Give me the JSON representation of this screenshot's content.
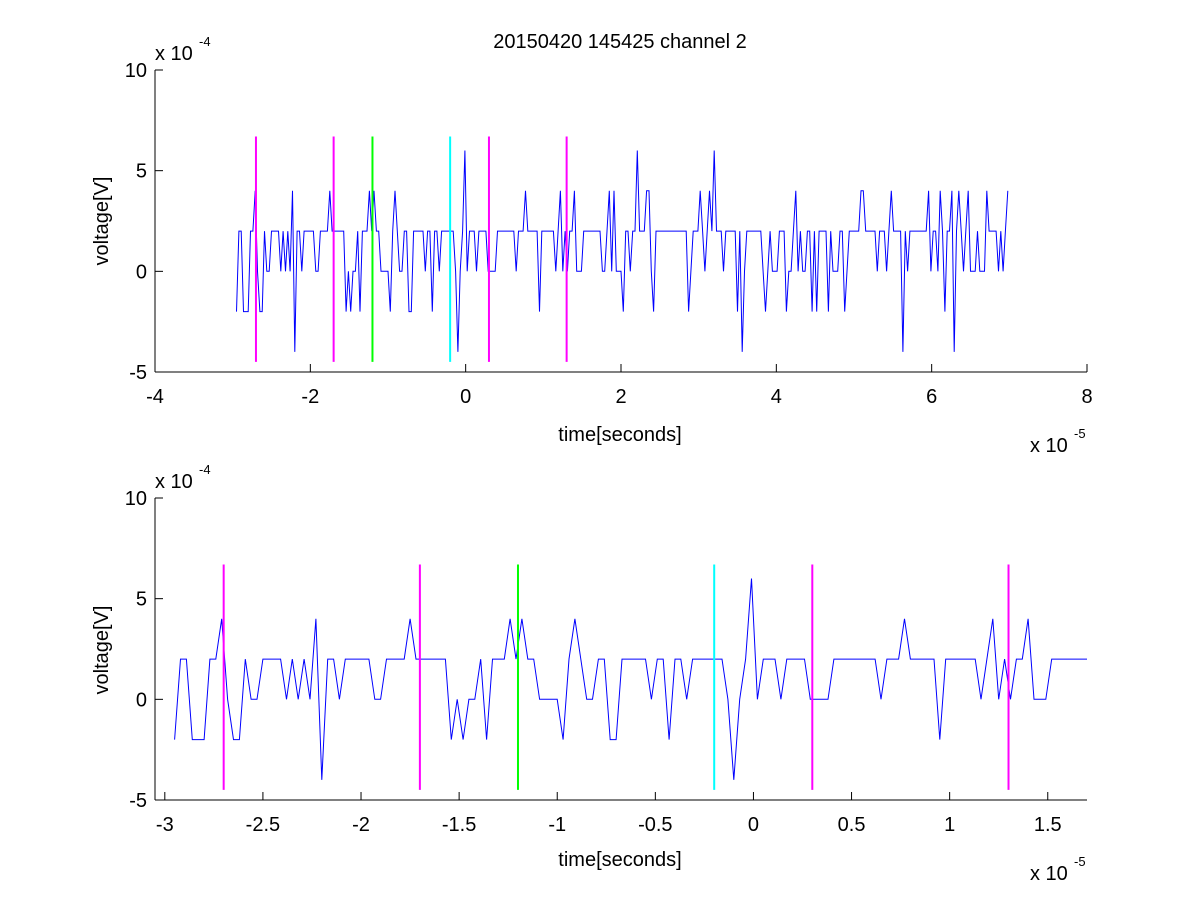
{
  "figure": {
    "title": "20150420 145425 channel 2",
    "colors": {
      "signal": "#0000ff",
      "magenta": "#ff00ff",
      "green": "#00ff00",
      "cyan": "#00ffff",
      "axis": "#000000"
    }
  },
  "chart_data": [
    {
      "type": "line",
      "xlabel": "time[seconds]",
      "ylabel": "voltage[V]",
      "x_multiplier": "x 10",
      "x_exponent": "-5",
      "y_multiplier": "x 10",
      "y_exponent": "-4",
      "xlim": [
        -4,
        8
      ],
      "ylim": [
        -5,
        10
      ],
      "xticks": [
        -4,
        -2,
        0,
        2,
        4,
        6,
        8
      ],
      "xtick_labels": [
        "-4",
        "-2",
        "0",
        "2",
        "4",
        "6",
        "8"
      ],
      "yticks": [
        -5,
        0,
        5,
        10
      ],
      "ytick_labels": [
        "-5",
        "0",
        "5",
        "10"
      ],
      "signal_range": [
        -2.95,
        7.0
      ],
      "grid": false,
      "markers": [
        {
          "x": -2.7,
          "color": "magenta",
          "y": [
            -4.5,
            6.7
          ]
        },
        {
          "x": -1.7,
          "color": "magenta",
          "y": [
            -4.5,
            6.7
          ]
        },
        {
          "x": -1.2,
          "color": "green",
          "y": [
            -4.5,
            6.7
          ]
        },
        {
          "x": -0.2,
          "color": "cyan",
          "y": [
            -4.5,
            6.7
          ]
        },
        {
          "x": 0.3,
          "color": "magenta",
          "y": [
            -4.5,
            6.7
          ]
        },
        {
          "x": 1.3,
          "color": "magenta",
          "y": [
            -4.5,
            6.7
          ]
        }
      ]
    },
    {
      "type": "line",
      "xlabel": "time[seconds]",
      "ylabel": "voltage[V]",
      "x_multiplier": "x 10",
      "x_exponent": "-5",
      "y_multiplier": "x 10",
      "y_exponent": "-4",
      "xlim": [
        -3.05,
        1.7
      ],
      "ylim": [
        -5,
        10
      ],
      "xticks": [
        -3,
        -2.5,
        -2,
        -1.5,
        -1,
        -0.5,
        0,
        0.5,
        1,
        1.5
      ],
      "xtick_labels": [
        "-3",
        "-2.5",
        "-2",
        "-1.5",
        "-1",
        "-0.5",
        "0",
        "0.5",
        "1",
        "1.5"
      ],
      "yticks": [
        -5,
        0,
        5,
        10
      ],
      "ytick_labels": [
        "-5",
        "0",
        "5",
        "10"
      ],
      "signal_range": [
        -2.95,
        1.7
      ],
      "grid": false,
      "markers": [
        {
          "x": -2.7,
          "color": "magenta",
          "y": [
            -4.5,
            6.7
          ]
        },
        {
          "x": -1.7,
          "color": "magenta",
          "y": [
            -4.5,
            6.7
          ]
        },
        {
          "x": -1.2,
          "color": "green",
          "y": [
            -4.5,
            6.7
          ]
        },
        {
          "x": -0.2,
          "color": "cyan",
          "y": [
            -4.5,
            6.7
          ]
        },
        {
          "x": 0.3,
          "color": "magenta",
          "y": [
            -4.5,
            6.7
          ]
        },
        {
          "x": 1.3,
          "color": "magenta",
          "y": [
            -4.5,
            6.7
          ]
        }
      ]
    }
  ]
}
